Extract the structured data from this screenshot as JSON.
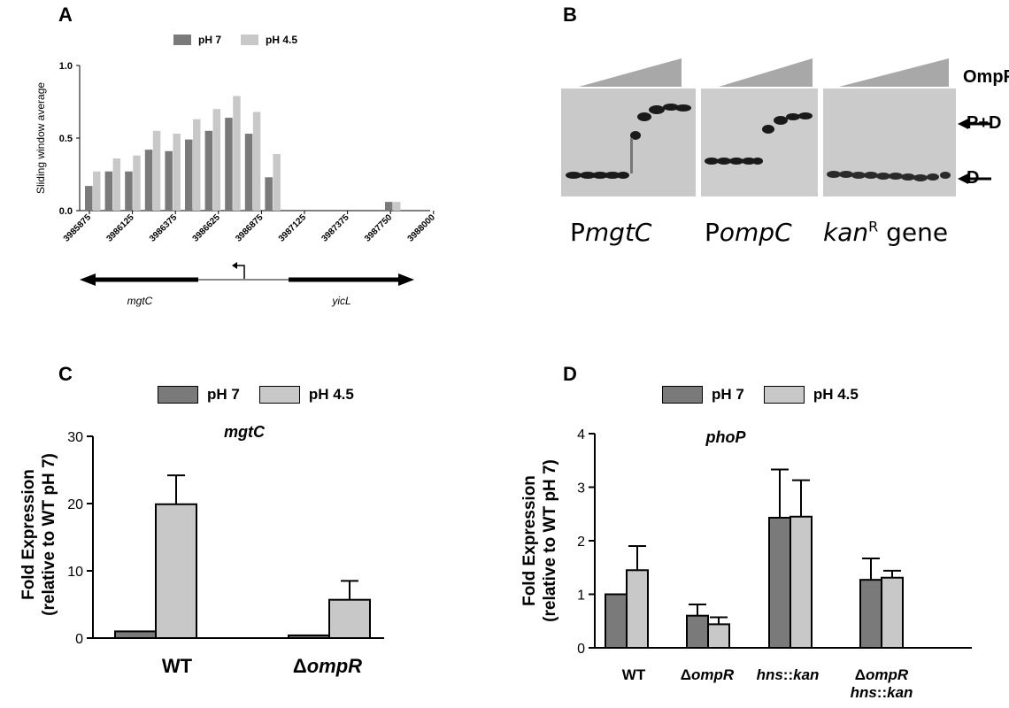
{
  "panels": {
    "a": "A",
    "b": "B",
    "c": "C",
    "d": "D"
  },
  "colors": {
    "ph7": "#7a7a7a",
    "ph45": "#c8c8c8"
  },
  "panel_a": {
    "legend": [
      "pH 7",
      "pH 4.5"
    ],
    "gene_left": "mgtC",
    "gene_right": "yicL"
  },
  "panel_b": {
    "ompr_label": "OmpR",
    "pd_label": "P+D",
    "d_label": "D",
    "gels": [
      {
        "prefix": "P",
        "italic": "mgtC",
        "sup": "",
        "suffix": ""
      },
      {
        "prefix": "P",
        "italic": "ompC",
        "sup": "",
        "suffix": ""
      },
      {
        "prefix": "",
        "italic": "kan",
        "sup": "R",
        "suffix": " gene"
      }
    ]
  },
  "chart_data": [
    {
      "type": "bar",
      "title": "",
      "ylabel": "Sliding window average",
      "ylim": [
        0,
        1.0
      ],
      "yticks": [
        "0.0",
        "0.5",
        "1.0"
      ],
      "xticks": [
        "3985875",
        "3986125",
        "3986375",
        "3986625",
        "3986875",
        "3987125",
        "3987375",
        "3987750",
        "3988000"
      ],
      "series": [
        {
          "name": "pH 7",
          "values": [
            0.17,
            0.27,
            0.27,
            0.42,
            0.41,
            0.49,
            0.55,
            0.64,
            0.53,
            0.23,
            0,
            0,
            0,
            0,
            0,
            0.06
          ]
        },
        {
          "name": "pH 4.5",
          "values": [
            0.27,
            0.36,
            0.38,
            0.55,
            0.53,
            0.63,
            0.7,
            0.79,
            0.68,
            0.39,
            0,
            0,
            0,
            0,
            0,
            0.06
          ]
        }
      ]
    },
    {
      "type": "bar",
      "title": "mgtC",
      "ylabel": "Fold Expression (relative to WT pH 7)",
      "ylabel_lines": [
        "Fold Expression",
        "(relative to WT pH 7)"
      ],
      "ylim": [
        0,
        30
      ],
      "yticks": [
        "0",
        "10",
        "20",
        "30"
      ],
      "categories": [
        "WT",
        "ΔompR"
      ],
      "category_parts": [
        [
          "WT",
          ""
        ],
        [
          "Δ",
          "ompR"
        ]
      ],
      "series": [
        {
          "name": "pH 7",
          "values": [
            1.0,
            0.4
          ],
          "errors": [
            0,
            0
          ]
        },
        {
          "name": "pH 4.5",
          "values": [
            19.9,
            5.7
          ],
          "errors": [
            4.3,
            2.8
          ]
        }
      ]
    },
    {
      "type": "bar",
      "title": "phoP",
      "ylabel": "Fold Expression (relative to WT pH 7)",
      "ylabel_lines": [
        "Fold Expression",
        "(relative to WT pH 7)"
      ],
      "ylim": [
        0,
        4
      ],
      "yticks": [
        "0",
        "1",
        "2",
        "3",
        "4"
      ],
      "categories": [
        "WT",
        "ΔompR",
        "hns::kan",
        "ΔompR hns::kan"
      ],
      "category_lines": [
        [
          "WT"
        ],
        [
          "ΔompR"
        ],
        [
          "hns::kan"
        ],
        [
          "ΔompR",
          "hns::kan"
        ]
      ],
      "series": [
        {
          "name": "pH 7",
          "values": [
            1.0,
            0.6,
            2.43,
            1.27
          ],
          "errors": [
            0,
            0.21,
            0.9,
            0.4
          ]
        },
        {
          "name": "pH 4.5",
          "values": [
            1.45,
            0.44,
            2.45,
            1.31
          ],
          "errors": [
            0.45,
            0.13,
            0.68,
            0.13
          ]
        }
      ]
    }
  ]
}
